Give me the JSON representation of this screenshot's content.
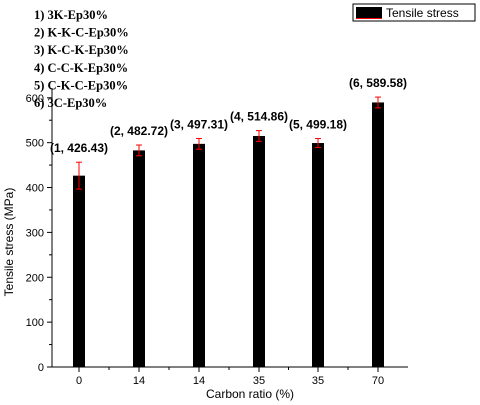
{
  "chart_data": {
    "type": "bar",
    "categories": [
      "0",
      "14",
      "14",
      "35",
      "35",
      "70"
    ],
    "series": [
      {
        "name": "Tensile stress",
        "values": [
          426.43,
          482.72,
          497.31,
          514.86,
          499.18,
          589.58
        ],
        "errors": [
          30,
          12,
          12,
          12,
          10,
          12
        ],
        "color": "#000000",
        "error_color": "#ff0000"
      }
    ],
    "data_labels": [
      "(1, 426.43)",
      "(2, 482.72)",
      "(3, 497.31)",
      "(4, 514.86)",
      "(5, 499.18)",
      "(6, 589.58)"
    ],
    "annotations": [
      "1) 3K-Ep30%",
      "2) K-K-C-Ep30%",
      "3) K-C-K-Ep30%",
      "4) C-C-K-Ep30%",
      "5) C-K-C-Ep30%",
      "6) 3C-Ep30%"
    ],
    "xlabel": "Carbon ratio (%)",
    "ylabel": "Tensile stress (MPa)",
    "ylim": [
      0,
      650
    ],
    "yticks": [
      0,
      100,
      200,
      300,
      400,
      500,
      600
    ],
    "legend": {
      "label": "Tensile stress",
      "placement": "top-right"
    },
    "grid": false
  }
}
